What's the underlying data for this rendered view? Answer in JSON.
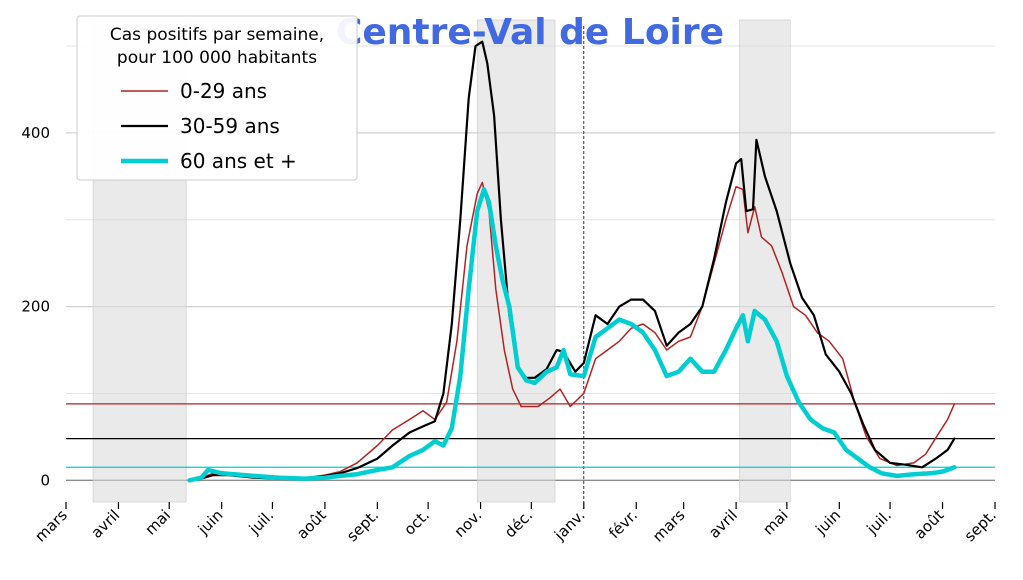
{
  "chart_data": {
    "type": "line",
    "title": "Centre-Val de Loire",
    "title_color": "#4169e1",
    "xlabel": "",
    "ylabel": "",
    "ylim": [
      -25,
      530
    ],
    "yticks": [
      0,
      200,
      400
    ],
    "y_minor_gridlines": [
      100,
      300,
      500
    ],
    "grid": true,
    "legend": {
      "title": "Cas positifs par semaine,\npour 100 000 habitants",
      "placement": "top-left"
    },
    "x_start": "2020-03-01",
    "x_end": "2021-09-01",
    "x_ticks": [
      {
        "date": "2020-03-01",
        "label": "mars"
      },
      {
        "date": "2020-04-01",
        "label": "avril"
      },
      {
        "date": "2020-05-01",
        "label": "mai"
      },
      {
        "date": "2020-06-01",
        "label": "juin"
      },
      {
        "date": "2020-07-01",
        "label": "juil."
      },
      {
        "date": "2020-08-01",
        "label": "août"
      },
      {
        "date": "2020-09-01",
        "label": "sept."
      },
      {
        "date": "2020-10-01",
        "label": "oct."
      },
      {
        "date": "2020-11-01",
        "label": "nov."
      },
      {
        "date": "2020-12-01",
        "label": "déc."
      },
      {
        "date": "2021-01-01",
        "label": "janv."
      },
      {
        "date": "2021-02-01",
        "label": "févr."
      },
      {
        "date": "2021-03-01",
        "label": "mars"
      },
      {
        "date": "2021-04-01",
        "label": "avril"
      },
      {
        "date": "2021-05-01",
        "label": "mai"
      },
      {
        "date": "2021-06-01",
        "label": "juin"
      },
      {
        "date": "2021-07-01",
        "label": "juil."
      },
      {
        "date": "2021-08-01",
        "label": "août"
      },
      {
        "date": "2021-09-01",
        "label": "sept."
      }
    ],
    "lockdown_periods": [
      {
        "start": "2020-03-17",
        "end": "2020-05-11"
      },
      {
        "start": "2020-10-30",
        "end": "2020-12-15"
      },
      {
        "start": "2021-04-03",
        "end": "2021-05-03"
      }
    ],
    "vline_date": "2021-01-01",
    "series": [
      {
        "name": "0-29 ans",
        "color": "#b22222",
        "width": 1.5,
        "current_level": 88,
        "points": [
          [
            "2020-05-13",
            0
          ],
          [
            "2020-05-20",
            3
          ],
          [
            "2020-05-27",
            8
          ],
          [
            "2020-06-05",
            7
          ],
          [
            "2020-06-20",
            4
          ],
          [
            "2020-07-05",
            3
          ],
          [
            "2020-07-20",
            3
          ],
          [
            "2020-08-01",
            6
          ],
          [
            "2020-08-10",
            10
          ],
          [
            "2020-08-20",
            20
          ],
          [
            "2020-09-01",
            40
          ],
          [
            "2020-09-10",
            58
          ],
          [
            "2020-09-20",
            70
          ],
          [
            "2020-09-28",
            80
          ],
          [
            "2020-10-05",
            70
          ],
          [
            "2020-10-12",
            90
          ],
          [
            "2020-10-18",
            160
          ],
          [
            "2020-10-24",
            270
          ],
          [
            "2020-10-30",
            330
          ],
          [
            "2020-11-02",
            343
          ],
          [
            "2020-11-06",
            310
          ],
          [
            "2020-11-10",
            220
          ],
          [
            "2020-11-15",
            150
          ],
          [
            "2020-11-20",
            105
          ],
          [
            "2020-11-25",
            85
          ],
          [
            "2020-12-05",
            85
          ],
          [
            "2020-12-12",
            95
          ],
          [
            "2020-12-18",
            105
          ],
          [
            "2020-12-24",
            85
          ],
          [
            "2021-01-01",
            100
          ],
          [
            "2021-01-08",
            140
          ],
          [
            "2021-01-15",
            150
          ],
          [
            "2021-01-22",
            160
          ],
          [
            "2021-01-29",
            175
          ],
          [
            "2021-02-05",
            180
          ],
          [
            "2021-02-12",
            170
          ],
          [
            "2021-02-19",
            150
          ],
          [
            "2021-02-26",
            160
          ],
          [
            "2021-03-05",
            165
          ],
          [
            "2021-03-12",
            200
          ],
          [
            "2021-03-19",
            250
          ],
          [
            "2021-03-26",
            300
          ],
          [
            "2021-04-01",
            338
          ],
          [
            "2021-04-05",
            335
          ],
          [
            "2021-04-08",
            285
          ],
          [
            "2021-04-12",
            315
          ],
          [
            "2021-04-16",
            280
          ],
          [
            "2021-04-22",
            270
          ],
          [
            "2021-04-28",
            240
          ],
          [
            "2021-05-05",
            200
          ],
          [
            "2021-05-12",
            190
          ],
          [
            "2021-05-19",
            170
          ],
          [
            "2021-05-26",
            160
          ],
          [
            "2021-06-03",
            140
          ],
          [
            "2021-06-10",
            90
          ],
          [
            "2021-06-17",
            50
          ],
          [
            "2021-06-25",
            25
          ],
          [
            "2021-07-05",
            17
          ],
          [
            "2021-07-15",
            20
          ],
          [
            "2021-07-22",
            30
          ],
          [
            "2021-07-30",
            55
          ],
          [
            "2021-08-04",
            70
          ],
          [
            "2021-08-08",
            88
          ]
        ]
      },
      {
        "name": "30-59 ans",
        "color": "#000000",
        "width": 2.2,
        "current_level": 48,
        "points": [
          [
            "2020-05-13",
            0
          ],
          [
            "2020-05-20",
            2
          ],
          [
            "2020-05-27",
            6
          ],
          [
            "2020-06-05",
            6
          ],
          [
            "2020-06-20",
            3
          ],
          [
            "2020-07-05",
            2
          ],
          [
            "2020-07-20",
            2
          ],
          [
            "2020-08-01",
            5
          ],
          [
            "2020-08-10",
            8
          ],
          [
            "2020-08-20",
            14
          ],
          [
            "2020-09-01",
            25
          ],
          [
            "2020-09-10",
            40
          ],
          [
            "2020-09-20",
            55
          ],
          [
            "2020-09-28",
            62
          ],
          [
            "2020-10-05",
            68
          ],
          [
            "2020-10-10",
            100
          ],
          [
            "2020-10-15",
            180
          ],
          [
            "2020-10-20",
            300
          ],
          [
            "2020-10-25",
            440
          ],
          [
            "2020-10-29",
            500
          ],
          [
            "2020-11-02",
            505
          ],
          [
            "2020-11-05",
            480
          ],
          [
            "2020-11-09",
            420
          ],
          [
            "2020-11-13",
            300
          ],
          [
            "2020-11-18",
            190
          ],
          [
            "2020-11-23",
            130
          ],
          [
            "2020-11-28",
            118
          ],
          [
            "2020-12-03",
            118
          ],
          [
            "2020-12-10",
            128
          ],
          [
            "2020-12-16",
            150
          ],
          [
            "2020-12-20",
            148
          ],
          [
            "2020-12-27",
            125
          ],
          [
            "2021-01-01",
            135
          ],
          [
            "2021-01-08",
            190
          ],
          [
            "2021-01-15",
            180
          ],
          [
            "2021-01-22",
            200
          ],
          [
            "2021-01-29",
            208
          ],
          [
            "2021-02-05",
            208
          ],
          [
            "2021-02-12",
            195
          ],
          [
            "2021-02-19",
            155
          ],
          [
            "2021-02-26",
            170
          ],
          [
            "2021-03-05",
            180
          ],
          [
            "2021-03-12",
            200
          ],
          [
            "2021-03-19",
            255
          ],
          [
            "2021-03-26",
            320
          ],
          [
            "2021-04-01",
            365
          ],
          [
            "2021-04-04",
            370
          ],
          [
            "2021-04-07",
            310
          ],
          [
            "2021-04-11",
            312
          ],
          [
            "2021-04-13",
            392
          ],
          [
            "2021-04-18",
            350
          ],
          [
            "2021-04-25",
            310
          ],
          [
            "2021-05-03",
            250
          ],
          [
            "2021-05-10",
            210
          ],
          [
            "2021-05-17",
            190
          ],
          [
            "2021-05-24",
            145
          ],
          [
            "2021-06-01",
            125
          ],
          [
            "2021-06-08",
            100
          ],
          [
            "2021-06-15",
            65
          ],
          [
            "2021-06-22",
            35
          ],
          [
            "2021-07-01",
            20
          ],
          [
            "2021-07-10",
            18
          ],
          [
            "2021-07-20",
            15
          ],
          [
            "2021-07-28",
            25
          ],
          [
            "2021-08-04",
            35
          ],
          [
            "2021-08-08",
            48
          ]
        ]
      },
      {
        "name": "60 ans et +",
        "color": "#00ced1",
        "width": 4.5,
        "current_level": 15,
        "points": [
          [
            "2020-05-13",
            0
          ],
          [
            "2020-05-20",
            3
          ],
          [
            "2020-05-24",
            12
          ],
          [
            "2020-06-01",
            8
          ],
          [
            "2020-06-20",
            5
          ],
          [
            "2020-07-05",
            3
          ],
          [
            "2020-07-20",
            2
          ],
          [
            "2020-08-01",
            3
          ],
          [
            "2020-08-10",
            5
          ],
          [
            "2020-08-20",
            7
          ],
          [
            "2020-09-01",
            12
          ],
          [
            "2020-09-10",
            15
          ],
          [
            "2020-09-20",
            28
          ],
          [
            "2020-09-28",
            35
          ],
          [
            "2020-10-05",
            45
          ],
          [
            "2020-10-10",
            40
          ],
          [
            "2020-10-15",
            60
          ],
          [
            "2020-10-20",
            120
          ],
          [
            "2020-10-25",
            220
          ],
          [
            "2020-10-30",
            310
          ],
          [
            "2020-11-03",
            335
          ],
          [
            "2020-11-06",
            320
          ],
          [
            "2020-11-10",
            270
          ],
          [
            "2020-11-14",
            230
          ],
          [
            "2020-11-18",
            200
          ],
          [
            "2020-11-23",
            130
          ],
          [
            "2020-11-28",
            115
          ],
          [
            "2020-12-03",
            112
          ],
          [
            "2020-12-10",
            125
          ],
          [
            "2020-12-16",
            130
          ],
          [
            "2020-12-20",
            150
          ],
          [
            "2020-12-24",
            122
          ],
          [
            "2021-01-01",
            120
          ],
          [
            "2021-01-08",
            165
          ],
          [
            "2021-01-15",
            175
          ],
          [
            "2021-01-22",
            185
          ],
          [
            "2021-01-29",
            180
          ],
          [
            "2021-02-05",
            170
          ],
          [
            "2021-02-12",
            150
          ],
          [
            "2021-02-19",
            120
          ],
          [
            "2021-02-26",
            125
          ],
          [
            "2021-03-05",
            140
          ],
          [
            "2021-03-12",
            125
          ],
          [
            "2021-03-19",
            125
          ],
          [
            "2021-03-26",
            150
          ],
          [
            "2021-04-01",
            175
          ],
          [
            "2021-04-05",
            190
          ],
          [
            "2021-04-08",
            160
          ],
          [
            "2021-04-12",
            195
          ],
          [
            "2021-04-18",
            185
          ],
          [
            "2021-04-25",
            160
          ],
          [
            "2021-05-01",
            120
          ],
          [
            "2021-05-08",
            90
          ],
          [
            "2021-05-15",
            70
          ],
          [
            "2021-05-22",
            60
          ],
          [
            "2021-05-29",
            55
          ],
          [
            "2021-06-05",
            35
          ],
          [
            "2021-06-12",
            25
          ],
          [
            "2021-06-19",
            15
          ],
          [
            "2021-06-26",
            8
          ],
          [
            "2021-07-05",
            5
          ],
          [
            "2021-07-15",
            7
          ],
          [
            "2021-07-25",
            8
          ],
          [
            "2021-08-01",
            10
          ],
          [
            "2021-08-08",
            15
          ]
        ]
      }
    ]
  }
}
